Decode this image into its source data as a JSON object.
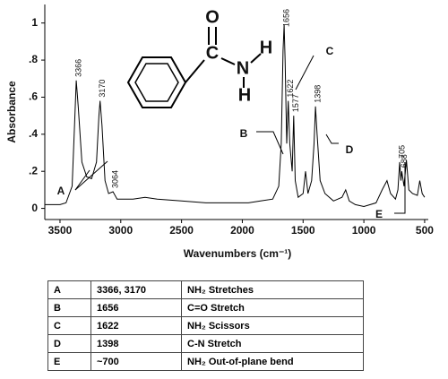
{
  "chart_data": {
    "type": "line",
    "ylabel": "Absorbance",
    "xlabel": "Wavenumbers (cm⁻¹)",
    "xlim": [
      3625,
      470
    ],
    "xticks": [
      3500,
      3000,
      2500,
      2000,
      1500,
      1000,
      500
    ],
    "ylim": [
      -0.06,
      1.1
    ],
    "yticks": [
      0,
      {
        "value": 0.2,
        "label": ".2"
      },
      {
        "value": 0.4,
        "label": ".4"
      },
      {
        "value": 0.6,
        "label": ".6"
      },
      {
        "value": 0.8,
        "label": ".8"
      },
      1
    ],
    "color": "#000000",
    "x": [
      3625,
      3500,
      3450,
      3400,
      3380,
      3366,
      3350,
      3320,
      3280,
      3240,
      3200,
      3180,
      3170,
      3155,
      3130,
      3100,
      3064,
      3030,
      2900,
      2800,
      2700,
      2500,
      2300,
      2100,
      1950,
      1850,
      1750,
      1700,
      1680,
      1665,
      1656,
      1648,
      1635,
      1622,
      1610,
      1590,
      1577,
      1565,
      1540,
      1500,
      1480,
      1460,
      1430,
      1410,
      1398,
      1385,
      1360,
      1320,
      1250,
      1180,
      1150,
      1120,
      1070,
      1000,
      900,
      850,
      810,
      780,
      740,
      720,
      705,
      695,
      688,
      670,
      650,
      630,
      600,
      560,
      540,
      520,
      500
    ],
    "values": [
      0.02,
      0.02,
      0.03,
      0.12,
      0.45,
      0.69,
      0.55,
      0.25,
      0.17,
      0.16,
      0.25,
      0.5,
      0.58,
      0.45,
      0.15,
      0.08,
      0.09,
      0.05,
      0.05,
      0.06,
      0.05,
      0.04,
      0.03,
      0.03,
      0.03,
      0.04,
      0.05,
      0.12,
      0.35,
      0.85,
      0.99,
      0.8,
      0.35,
      0.58,
      0.35,
      0.2,
      0.5,
      0.15,
      0.06,
      0.08,
      0.2,
      0.08,
      0.15,
      0.35,
      0.55,
      0.4,
      0.15,
      0.08,
      0.04,
      0.06,
      0.1,
      0.04,
      0.02,
      0.01,
      0.03,
      0.1,
      0.15,
      0.08,
      0.05,
      0.1,
      0.25,
      0.15,
      0.2,
      0.12,
      0.26,
      0.1,
      0.08,
      0.07,
      0.15,
      0.08,
      0.06
    ],
    "peak_labels": [
      3366,
      3170,
      3064,
      1656,
      1622,
      1577,
      1398,
      705,
      688
    ]
  },
  "molecule": {
    "atoms": [
      "O",
      "C",
      "N",
      "H",
      "H"
    ]
  },
  "table": {
    "rows": [
      [
        "A",
        "3366, 3170",
        "NH₂ Stretches"
      ],
      [
        "B",
        "1656",
        "C=O Stretch"
      ],
      [
        "C",
        "1622",
        "NH₂ Scissors"
      ],
      [
        "D",
        "1398",
        "C-N Stretch"
      ],
      [
        "E",
        "~700",
        "NH₂ Out-of-plane bend"
      ]
    ]
  }
}
